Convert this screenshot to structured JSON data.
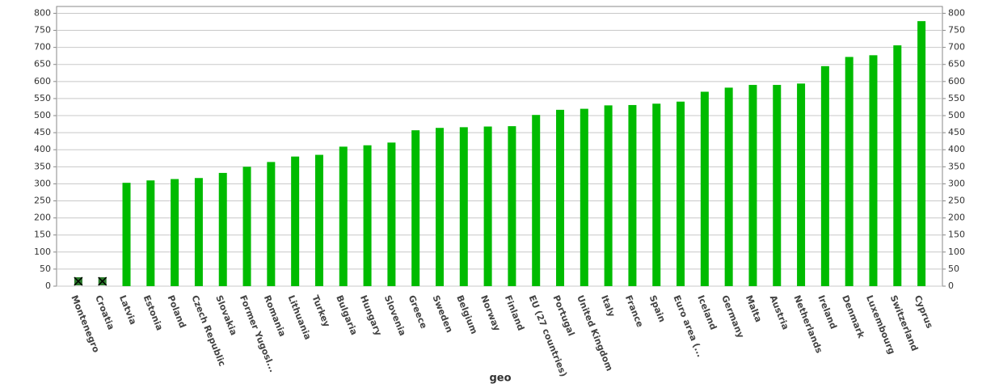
{
  "chart_data": {
    "type": "bar",
    "x_label": "geo",
    "categories": [
      "Montenegro",
      "Croatia",
      "Latvia",
      "Estonia",
      "Poland",
      "Czech Republic",
      "Slovakia",
      "Former Yugosl...",
      "Romania",
      "Lithuania",
      "Turkey",
      "Bulgaria",
      "Hungary",
      "Slovenia",
      "Greece",
      "Sweden",
      "Belgium",
      "Norway",
      "Finland",
      "EU (27 countries)",
      "Portugal",
      "United Kingdom",
      "Italy",
      "France",
      "Spain",
      "Euro area (...",
      "Iceland",
      "Germany",
      "Malta",
      "Austria",
      "Netherlands",
      "Ireland",
      "Denmark",
      "Luxembourg",
      "Switzerland",
      "Cyprus"
    ],
    "values": [
      null,
      null,
      303,
      310,
      314,
      317,
      332,
      350,
      364,
      380,
      385,
      409,
      413,
      421,
      457,
      464,
      466,
      468,
      469,
      502,
      517,
      520,
      530,
      531,
      535,
      541,
      570,
      582,
      590,
      590,
      594,
      645,
      672,
      677,
      706,
      777
    ],
    "color": "#00bb00",
    "ylim": [
      0,
      820
    ],
    "yticks": [
      0,
      50,
      100,
      150,
      200,
      250,
      300,
      350,
      400,
      450,
      500,
      550,
      600,
      650,
      700,
      750,
      800
    ],
    "y2lim": [
      0,
      820
    ],
    "y2ticks": [
      0,
      50,
      100,
      150,
      200,
      250,
      300,
      350,
      400,
      450,
      500,
      550,
      600,
      650,
      700,
      750,
      800
    ],
    "grid": true
  }
}
